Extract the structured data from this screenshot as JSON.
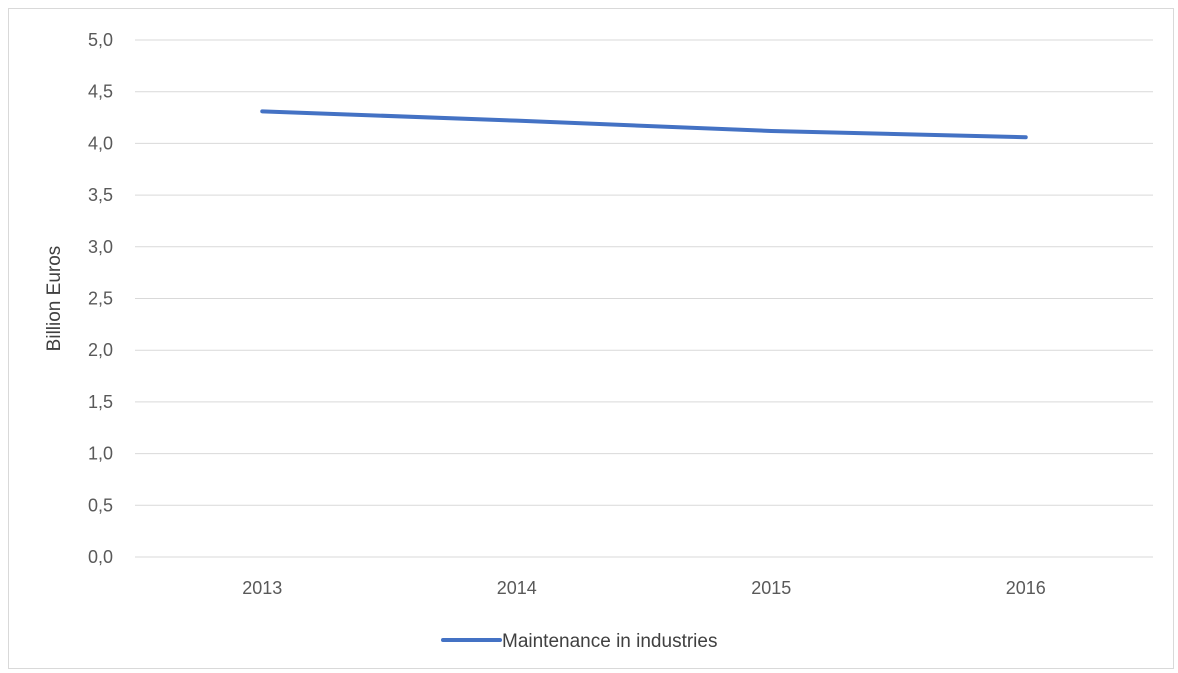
{
  "chart_data": {
    "type": "line",
    "categories": [
      "2013",
      "2014",
      "2015",
      "2016"
    ],
    "series": [
      {
        "name": "Maintenance in industries",
        "values": [
          4.31,
          4.22,
          4.12,
          4.06
        ],
        "color": "#4472c4"
      }
    ],
    "ylabel": "Billion Euros",
    "xlabel": "",
    "ylim": [
      0,
      5
    ],
    "yticks": [
      "0,0",
      "0,5",
      "1,0",
      "1,5",
      "2,0",
      "2,5",
      "3,0",
      "3,5",
      "4,0",
      "4,5",
      "5,0"
    ],
    "grid": true,
    "legend_position": "bottom"
  }
}
